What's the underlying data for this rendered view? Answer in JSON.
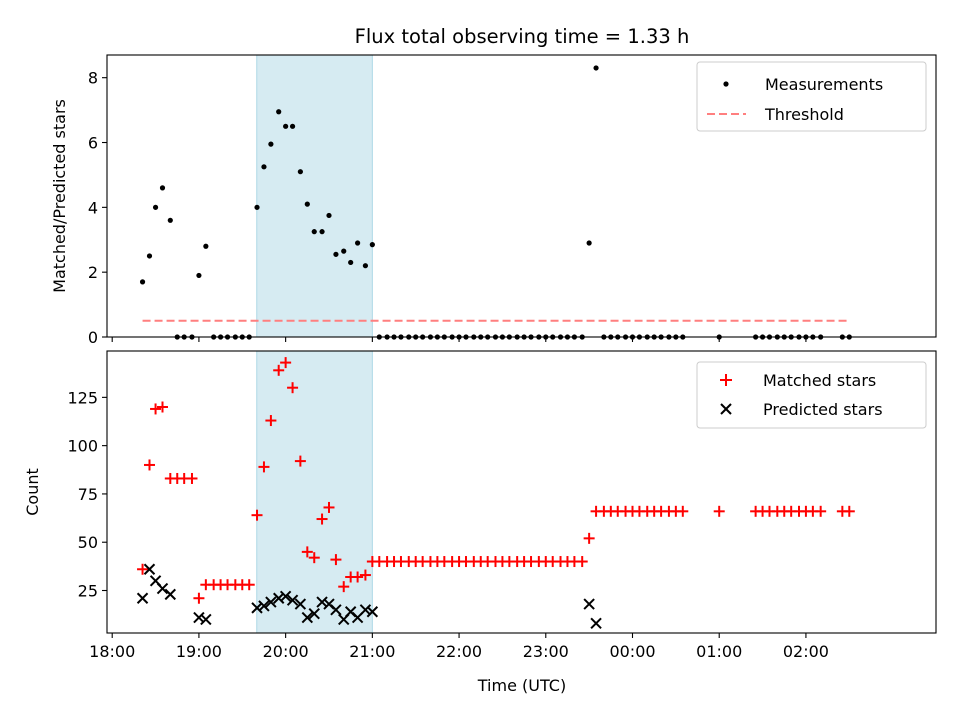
{
  "chart_data": {
    "title": "Flux total observing time = 1.33 h",
    "xlabel": "Time (UTC)",
    "x_unit": "hours since 18:00 UTC",
    "xlim": [
      -0.06,
      9.5
    ],
    "x_ticks": [
      {
        "value": 0,
        "label": "18:00"
      },
      {
        "value": 1,
        "label": "19:00"
      },
      {
        "value": 2,
        "label": "20:00"
      },
      {
        "value": 3,
        "label": "21:00"
      },
      {
        "value": 4,
        "label": "22:00"
      },
      {
        "value": 5,
        "label": "23:00"
      },
      {
        "value": 6,
        "label": "00:00"
      },
      {
        "value": 7,
        "label": "01:00"
      },
      {
        "value": 8,
        "label": "02:00"
      }
    ],
    "highlight_span": {
      "x0": 1.667,
      "x1": 3.0,
      "color": "#add8e6"
    },
    "panels": [
      {
        "type": "scatter",
        "ylabel": "Matched/Predicted stars",
        "ylim": [
          0,
          8.7
        ],
        "y_ticks": [
          0,
          2,
          4,
          6,
          8
        ],
        "legend_position": "upper right",
        "series": [
          {
            "name": "Measurements",
            "marker": "dot",
            "color": "#000000",
            "x": [
              0.35,
              0.43,
              0.5,
              0.58,
              0.67,
              0.75,
              0.83,
              0.92,
              1.0,
              1.08,
              1.17,
              1.25,
              1.33,
              1.42,
              1.5,
              1.58,
              1.67,
              1.75,
              1.83,
              1.92,
              2.0,
              2.08,
              2.17,
              2.25,
              2.33,
              2.42,
              2.5,
              2.58,
              2.67,
              2.75,
              2.83,
              2.92,
              3.0,
              3.08,
              3.17,
              3.25,
              3.33,
              3.42,
              3.5,
              3.58,
              3.67,
              3.75,
              3.83,
              3.92,
              4.0,
              4.08,
              4.17,
              4.25,
              4.33,
              4.42,
              4.5,
              4.58,
              4.67,
              4.75,
              4.83,
              4.92,
              5.0,
              5.08,
              5.17,
              5.25,
              5.33,
              5.42,
              5.5,
              5.58,
              5.67,
              5.75,
              5.83,
              5.92,
              6.0,
              6.08,
              6.17,
              6.25,
              6.33,
              6.42,
              6.5,
              6.58,
              7.0,
              7.42,
              7.5,
              7.58,
              7.67,
              7.75,
              7.83,
              7.92,
              8.0,
              8.08,
              8.17,
              8.42,
              8.5
            ],
            "y": [
              1.7,
              2.5,
              4.0,
              4.6,
              3.6,
              0.0,
              0.0,
              0.0,
              1.9,
              2.8,
              0.0,
              0.0,
              0.0,
              0.0,
              0.0,
              0.0,
              4.0,
              5.25,
              5.95,
              6.95,
              6.5,
              6.5,
              5.1,
              4.1,
              3.25,
              3.25,
              3.75,
              2.55,
              2.65,
              2.3,
              2.9,
              2.2,
              2.85,
              0.0,
              0.0,
              0.0,
              0.0,
              0.0,
              0.0,
              0.0,
              0.0,
              0.0,
              0.0,
              0.0,
              0.0,
              0.0,
              0.0,
              0.0,
              0.0,
              0.0,
              0.0,
              0.0,
              0.0,
              0.0,
              0.0,
              0.0,
              0.0,
              0.0,
              0.0,
              0.0,
              0.0,
              0.0,
              2.9,
              8.3,
              0.0,
              0.0,
              0.0,
              0.0,
              0.0,
              0.0,
              0.0,
              0.0,
              0.0,
              0.0,
              0.0,
              0.0,
              0.0,
              0.0,
              0.0,
              0.0,
              0.0,
              0.0,
              0.0,
              0.0,
              0.0,
              0.0,
              0.0,
              0.0,
              0.0
            ]
          },
          {
            "name": "Threshold",
            "type": "line",
            "style": "dashed",
            "color": "#ff7f7f",
            "x": [
              0.35,
              8.5
            ],
            "y": [
              0.5,
              0.5
            ]
          }
        ]
      },
      {
        "type": "scatter",
        "ylabel": "Count",
        "ylim": [
          3,
          149
        ],
        "y_ticks": [
          25,
          50,
          75,
          100,
          125
        ],
        "legend_position": "upper right",
        "series": [
          {
            "name": "Matched stars",
            "marker": "plus",
            "color": "#ff0000",
            "x": [
              0.35,
              0.43,
              0.5,
              0.58,
              0.67,
              0.75,
              0.83,
              0.92,
              1.0,
              1.08,
              1.17,
              1.25,
              1.33,
              1.42,
              1.5,
              1.58,
              1.67,
              1.75,
              1.83,
              1.92,
              2.0,
              2.08,
              2.17,
              2.25,
              2.33,
              2.42,
              2.5,
              2.58,
              2.67,
              2.75,
              2.83,
              2.92,
              3.0,
              3.08,
              3.17,
              3.25,
              3.33,
              3.42,
              3.5,
              3.58,
              3.67,
              3.75,
              3.83,
              3.92,
              4.0,
              4.08,
              4.17,
              4.25,
              4.33,
              4.42,
              4.5,
              4.58,
              4.67,
              4.75,
              4.83,
              4.92,
              5.0,
              5.08,
              5.17,
              5.25,
              5.33,
              5.42,
              5.5,
              5.58,
              5.67,
              5.75,
              5.83,
              5.92,
              6.0,
              6.08,
              6.17,
              6.25,
              6.33,
              6.42,
              6.5,
              6.58,
              7.0,
              7.42,
              7.5,
              7.58,
              7.67,
              7.75,
              7.83,
              7.92,
              8.0,
              8.08,
              8.17,
              8.42,
              8.5
            ],
            "y": [
              36,
              90,
              119,
              120,
              83,
              83,
              83,
              83,
              21,
              28,
              28,
              28,
              28,
              28,
              28,
              28,
              64,
              89,
              113,
              139,
              143,
              130,
              92,
              45,
              42,
              62,
              68,
              41,
              27,
              32,
              32,
              33,
              40,
              40,
              40,
              40,
              40,
              40,
              40,
              40,
              40,
              40,
              40,
              40,
              40,
              40,
              40,
              40,
              40,
              40,
              40,
              40,
              40,
              40,
              40,
              40,
              40,
              40,
              40,
              40,
              40,
              40,
              52,
              66,
              66,
              66,
              66,
              66,
              66,
              66,
              66,
              66,
              66,
              66,
              66,
              66,
              66,
              66,
              66,
              66,
              66,
              66,
              66,
              66,
              66,
              66,
              66,
              66,
              66
            ]
          },
          {
            "name": "Predicted stars",
            "marker": "x",
            "color": "#000000",
            "x": [
              0.35,
              0.43,
              0.5,
              0.58,
              0.67,
              1.0,
              1.08,
              1.67,
              1.75,
              1.83,
              1.92,
              2.0,
              2.08,
              2.17,
              2.25,
              2.33,
              2.42,
              2.5,
              2.58,
              2.67,
              2.75,
              2.83,
              2.92,
              3.0,
              5.5,
              5.58
            ],
            "y": [
              21,
              36,
              30,
              26,
              23,
              11,
              10,
              16,
              17,
              19,
              21,
              22,
              20,
              18,
              11,
              13,
              19,
              18,
              15,
              10,
              14,
              11,
              15,
              14,
              18,
              8
            ]
          }
        ]
      }
    ]
  }
}
